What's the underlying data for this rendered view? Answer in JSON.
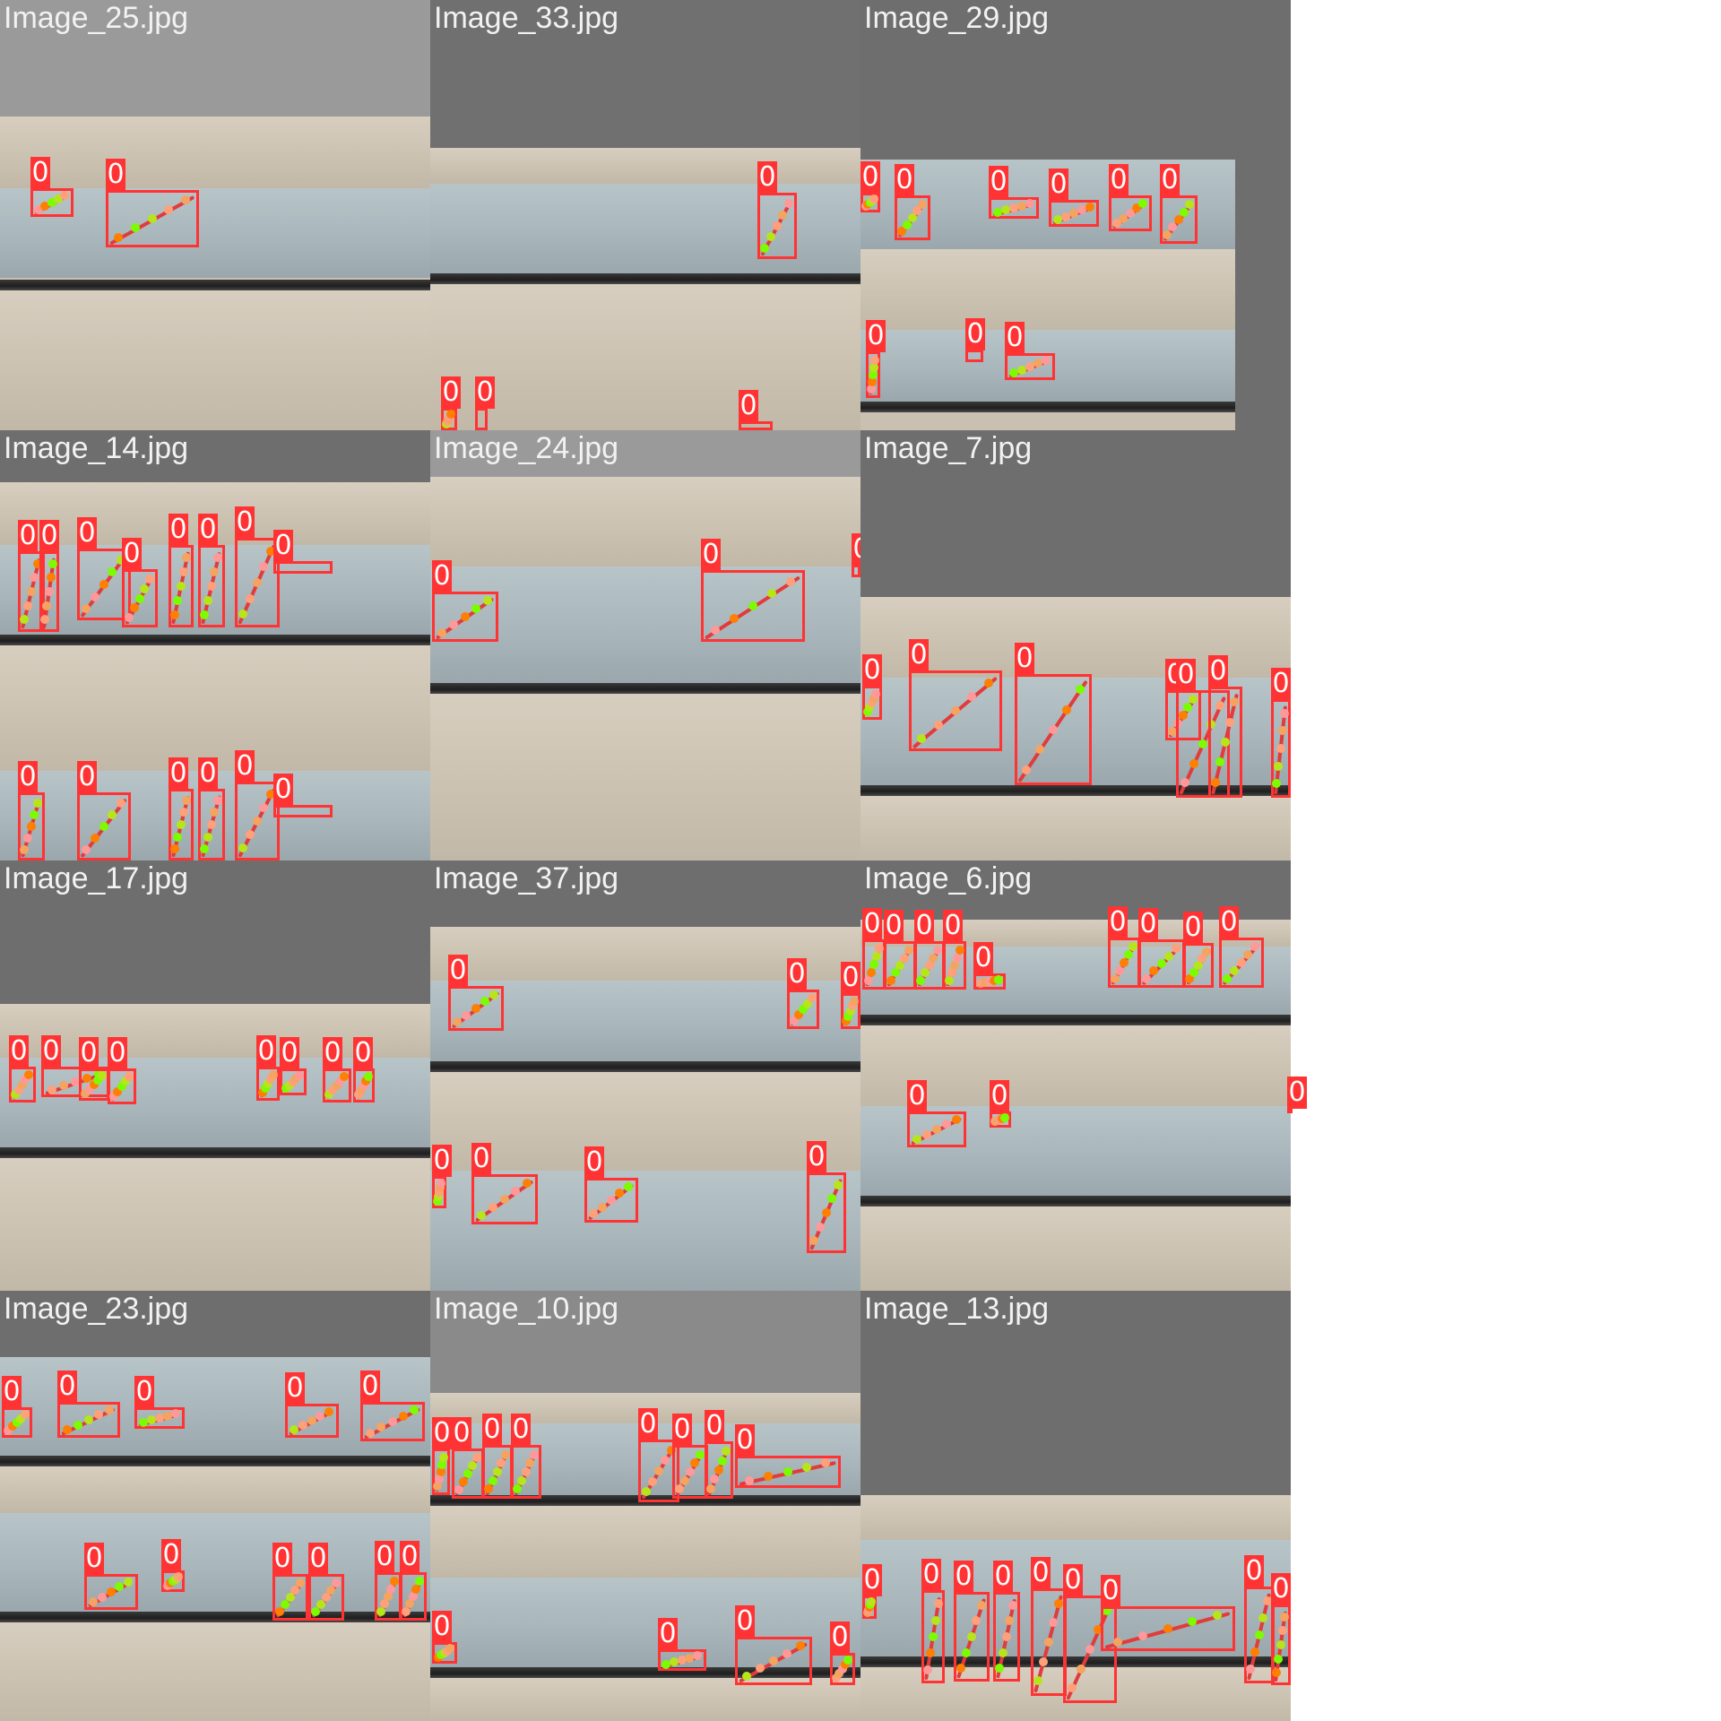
{
  "grid": {
    "tiles": [
      {
        "id": "t1",
        "filename": "Image_25.jpg",
        "bg": "#9a9a9a"
      },
      {
        "id": "t2",
        "filename": "Image_33.jpg",
        "bg": "#707070"
      },
      {
        "id": "t3",
        "filename": "Image_29.jpg",
        "bg": "#6e6e6e"
      },
      {
        "id": "t4",
        "filename": "Image_14.jpg",
        "bg": "#6e6e6e"
      },
      {
        "id": "t5",
        "filename": "Image_24.jpg",
        "bg": "#9a9a9a"
      },
      {
        "id": "t6",
        "filename": "Image_7.jpg",
        "bg": "#6e6e6e"
      },
      {
        "id": "t7",
        "filename": "Image_17.jpg",
        "bg": "#6e6e6e"
      },
      {
        "id": "t8",
        "filename": "Image_37.jpg",
        "bg": "#6e6e6e"
      },
      {
        "id": "t9",
        "filename": "Image_6.jpg",
        "bg": "#6e6e6e"
      },
      {
        "id": "t10",
        "filename": "Image_23.jpg",
        "bg": "#6e6e6e"
      },
      {
        "id": "t11",
        "filename": "Image_10.jpg",
        "bg": "#8a8a8a"
      },
      {
        "id": "t12",
        "filename": "Image_13.jpg",
        "bg": "#6e6e6e"
      }
    ]
  },
  "detection": {
    "class_label": "0",
    "box_color": "#ff3333",
    "limb_color": "#e23b3b",
    "keypoint_colors": [
      "#ff9999",
      "#ff7f00",
      "#7cfc00",
      "#b6e61a",
      "#ffa07a",
      "#f4a460"
    ]
  }
}
